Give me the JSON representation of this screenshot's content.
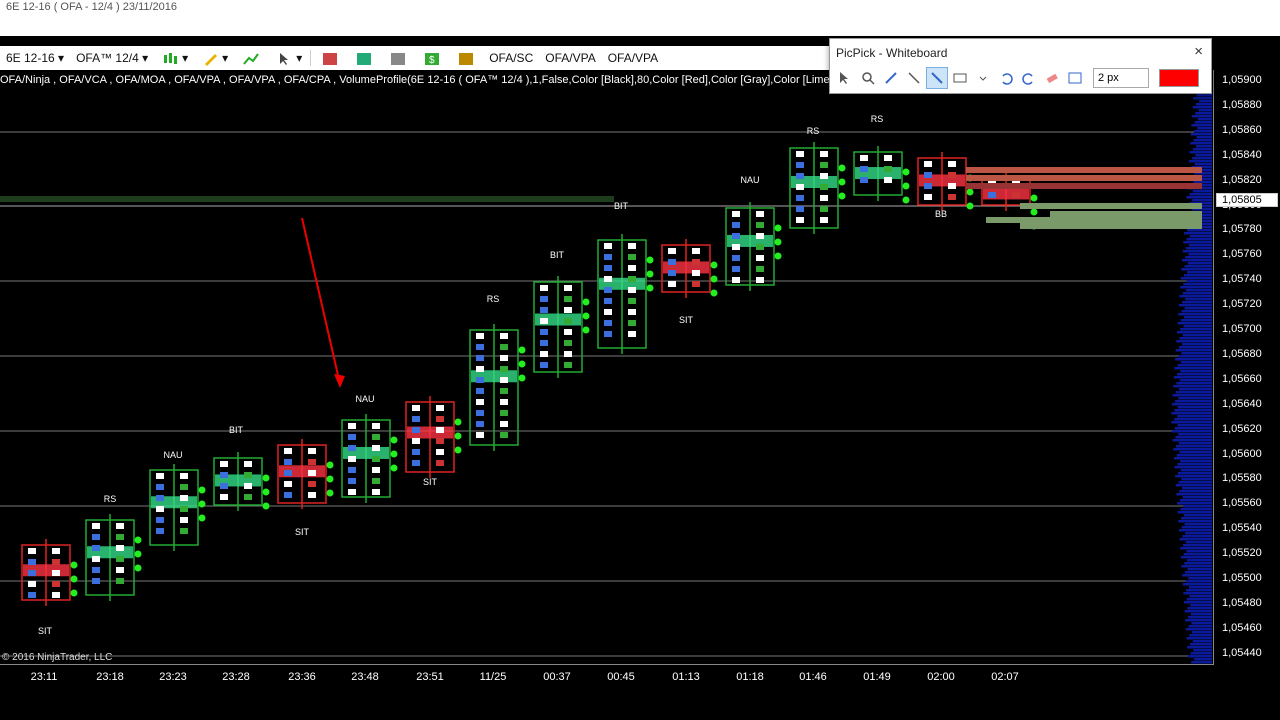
{
  "window": {
    "title": "6E 12-16 ( OFA - 12/4 ) 23/11/2016"
  },
  "toolbar": {
    "instrument": "6E 12-16",
    "template": "OFA™ 12/4",
    "btn_sc": "OFA/SC",
    "btn_vpa1": "OFA/VPA",
    "btn_vpa2": "OFA/VPA"
  },
  "indicators": "OFA/Ninja , OFA/VCA , OFA/MOA , OFA/VPA , OFA/VPA , OFA/CPA , VolumeProfile(6E 12-16 ( OFA™ 12/4 ),1,False,Color [Black],80,Color [Red],Color [Gray],Color [Lime]) , OFA/",
  "picpick": {
    "title": "PicPick - Whiteboard",
    "close": "×",
    "size": "2 px",
    "color": "#ff0000"
  },
  "price_axis": {
    "labels": [
      "1,05900",
      "1,05880",
      "1,05860",
      "1,05840",
      "1,05820",
      "1,05800",
      "1,05780",
      "1,05760",
      "1,05740",
      "1,05720",
      "1,05700",
      "1,05680",
      "1,05660",
      "1,05640",
      "1,05620",
      "1,05600",
      "1,05580",
      "1,05560",
      "1,05540",
      "1,05520",
      "1,05500",
      "1,05480",
      "1,05460",
      "1,05440"
    ],
    "current": "1,05805"
  },
  "time_axis": {
    "labels": [
      "23:11",
      "23:18",
      "23:23",
      "23:28",
      "23:36",
      "23:48",
      "23:51",
      "11/25",
      "00:37",
      "00:45",
      "01:13",
      "01:18",
      "01:46",
      "01:49",
      "02:00",
      "02:07"
    ]
  },
  "copyright": "© 2016 NinjaTrader, LLC",
  "bar_tags": [
    "SIT",
    "RS",
    "NAU",
    "BIT",
    "SIT",
    "NAU",
    "SIT",
    "RS",
    "BIT",
    "BIT",
    "SIT",
    "NAU",
    "RS",
    "RS",
    "BB"
  ],
  "colors": {
    "up": "#22aa33",
    "down": "#dd2222",
    "grid": "#888888",
    "profile": "#0a1a9a"
  }
}
